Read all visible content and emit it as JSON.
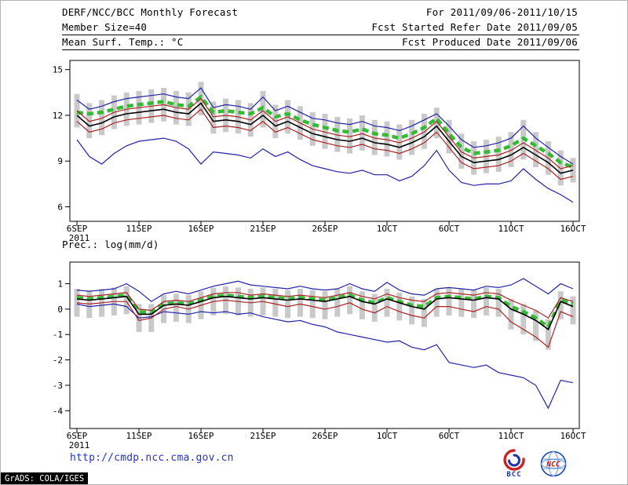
{
  "header": {
    "row1_left": "DERF/NCC/BCC Monthly Forecast",
    "row1_right": "For 2011/09/06-2011/10/15",
    "row2_left": "Member Size=40",
    "row2_right": "Fcst Started Refer Date 2011/09/05",
    "row3_left": "Mean Surf. Temp.: °C",
    "row3_right": "Fcst Produced Date 2011/09/06"
  },
  "panel2_label": "Prec.: log(mm/d)",
  "footer": {
    "url": "http://cmdp.ncc.cma.gov.cn",
    "logo_bcc": "BCC",
    "logo_ncc": "NCC",
    "credit": "GrADS: COLA/IGES"
  },
  "colors": {
    "envelope_blue": "#2222aa",
    "quantile_red": "#aa2222",
    "mean_black": "#000000",
    "reference_green": "#33bb33",
    "spread_gray": "#c9c9c9",
    "url_blue": "#2233cc"
  },
  "chart_data": [
    {
      "type": "line",
      "title": "Mean Surf. Temp.: °C",
      "xlabel": "",
      "ylabel": "",
      "x_year": "2011",
      "x_labels": [
        "6SEP",
        "11SEP",
        "16SEP",
        "21SEP",
        "26SEP",
        "1OCT",
        "6OCT",
        "11OCT",
        "16OCT"
      ],
      "x_tick_indices": [
        0,
        5,
        10,
        15,
        20,
        25,
        30,
        35,
        40
      ],
      "n_points": 41,
      "ylim": [
        5.05,
        15.6
      ],
      "yticks": [
        6,
        9,
        12,
        15
      ],
      "grid": false,
      "legend": "none",
      "band": {
        "name": "ensemble-spread",
        "color": "#c9c9c9",
        "top": [
          13.4,
          12.8,
          13.0,
          13.3,
          13.5,
          13.6,
          13.7,
          13.8,
          13.6,
          13.5,
          14.2,
          12.9,
          13.1,
          13.0,
          12.8,
          13.6,
          12.7,
          13.0,
          12.6,
          12.2,
          12.1,
          11.9,
          11.8,
          12.0,
          11.7,
          11.6,
          11.4,
          11.7,
          12.1,
          12.5,
          11.7,
          10.8,
          10.3,
          10.4,
          10.6,
          10.9,
          11.7,
          10.9,
          10.3,
          9.7,
          9.2
        ],
        "bottom": [
          11.2,
          10.5,
          10.7,
          11.1,
          11.3,
          11.4,
          11.5,
          11.6,
          11.4,
          11.3,
          12.0,
          10.8,
          10.9,
          10.8,
          10.6,
          11.2,
          10.5,
          10.8,
          10.4,
          10.0,
          9.8,
          9.6,
          9.5,
          9.7,
          9.4,
          9.3,
          9.1,
          9.4,
          9.8,
          10.5,
          9.5,
          8.5,
          8.1,
          8.2,
          8.3,
          8.6,
          9.1,
          8.6,
          8.1,
          7.4,
          7.6
        ]
      },
      "series": [
        {
          "name": "reference-dashed",
          "color": "#33bb33",
          "style": "dashed",
          "width": 4.5,
          "values": [
            12.2,
            12.1,
            12.2,
            12.4,
            12.6,
            12.7,
            12.8,
            12.9,
            12.7,
            12.6,
            13.2,
            12.2,
            12.3,
            12.2,
            12.1,
            12.5,
            11.9,
            12.1,
            11.7,
            11.4,
            11.2,
            11.0,
            10.9,
            11.1,
            10.8,
            10.7,
            10.5,
            10.8,
            11.2,
            11.8,
            10.8,
            9.9,
            9.5,
            9.6,
            9.7,
            10.0,
            10.5,
            10.0,
            9.5,
            8.9,
            8.6
          ]
        },
        {
          "name": "ensemble-max",
          "color": "#2222aa",
          "style": "solid",
          "width": 1.2,
          "values": [
            13.0,
            12.4,
            12.6,
            12.9,
            13.1,
            13.2,
            13.3,
            13.4,
            13.2,
            13.1,
            13.8,
            12.5,
            12.7,
            12.6,
            12.4,
            13.2,
            12.3,
            12.6,
            12.2,
            11.8,
            11.7,
            11.5,
            11.4,
            11.6,
            11.3,
            11.2,
            11.0,
            11.3,
            11.7,
            12.1,
            11.3,
            10.4,
            9.9,
            10.0,
            10.2,
            10.5,
            11.3,
            10.5,
            9.9,
            9.3,
            8.8
          ]
        },
        {
          "name": "ensemble-min",
          "color": "#2222aa",
          "style": "solid",
          "width": 1.2,
          "values": [
            10.4,
            9.3,
            8.8,
            9.5,
            10.0,
            10.3,
            10.4,
            10.5,
            10.3,
            9.8,
            8.8,
            9.6,
            9.5,
            9.4,
            9.2,
            9.8,
            9.3,
            9.6,
            9.1,
            8.7,
            8.5,
            8.3,
            8.2,
            8.4,
            8.1,
            8.1,
            7.7,
            8.0,
            8.7,
            9.7,
            8.4,
            7.6,
            7.4,
            7.5,
            7.5,
            7.7,
            8.5,
            7.8,
            7.2,
            6.8,
            6.3
          ]
        },
        {
          "name": "upper-quantile",
          "color": "#aa2222",
          "style": "solid",
          "width": 1.2,
          "values": [
            12.3,
            11.6,
            11.8,
            12.2,
            12.4,
            12.5,
            12.6,
            12.7,
            12.5,
            12.4,
            13.1,
            11.9,
            12.0,
            11.9,
            11.7,
            12.3,
            11.6,
            11.9,
            11.5,
            11.1,
            10.9,
            10.7,
            10.6,
            10.8,
            10.5,
            10.4,
            10.2,
            10.5,
            10.9,
            11.6,
            10.6,
            9.6,
            9.2,
            9.3,
            9.4,
            9.7,
            10.2,
            9.7,
            9.2,
            8.5,
            8.7
          ]
        },
        {
          "name": "lower-quantile",
          "color": "#aa2222",
          "style": "solid",
          "width": 1.2,
          "values": [
            11.6,
            10.9,
            11.1,
            11.5,
            11.7,
            11.8,
            11.9,
            12.0,
            11.8,
            11.7,
            12.4,
            11.2,
            11.3,
            11.2,
            11.0,
            11.6,
            10.9,
            11.2,
            10.8,
            10.4,
            10.2,
            10.0,
            9.9,
            10.1,
            9.8,
            9.7,
            9.5,
            9.8,
            10.2,
            10.9,
            9.9,
            8.9,
            8.5,
            8.6,
            8.7,
            9.0,
            9.5,
            9.0,
            8.5,
            7.8,
            8.0
          ]
        },
        {
          "name": "ensemble-mean",
          "color": "#000000",
          "style": "solid",
          "width": 1.6,
          "values": [
            12.0,
            11.3,
            11.5,
            11.9,
            12.1,
            12.2,
            12.3,
            12.4,
            12.2,
            12.1,
            12.8,
            11.6,
            11.7,
            11.6,
            11.4,
            12.0,
            11.3,
            11.6,
            11.2,
            10.8,
            10.6,
            10.4,
            10.3,
            10.5,
            10.2,
            10.1,
            9.9,
            10.2,
            10.6,
            11.3,
            10.3,
            9.3,
            8.9,
            9.0,
            9.1,
            9.4,
            9.9,
            9.4,
            8.9,
            8.2,
            8.4
          ]
        }
      ]
    },
    {
      "type": "line",
      "title": "Prec.: log(mm/d)",
      "xlabel": "",
      "ylabel": "",
      "x_year": "2011",
      "x_labels": [
        "6SEP",
        "11SEP",
        "16SEP",
        "21SEP",
        "26SEP",
        "1OCT",
        "6OCT",
        "11OCT",
        "16OCT"
      ],
      "x_tick_indices": [
        0,
        5,
        10,
        15,
        20,
        25,
        30,
        35,
        40
      ],
      "n_points": 41,
      "ylim": [
        -4.7,
        1.85
      ],
      "yticks": [
        -4,
        -3,
        -2,
        -1,
        0,
        1
      ],
      "grid": false,
      "legend": "none",
      "band": {
        "name": "ensemble-spread",
        "color": "#c9c9c9",
        "top": [
          0.8,
          0.75,
          0.8,
          0.85,
          0.9,
          0.2,
          0.2,
          0.55,
          0.6,
          0.55,
          0.7,
          0.85,
          0.9,
          0.85,
          0.8,
          0.85,
          0.8,
          0.75,
          0.8,
          0.75,
          0.7,
          0.8,
          0.9,
          0.7,
          0.6,
          0.8,
          0.65,
          0.5,
          0.4,
          0.8,
          0.85,
          0.8,
          0.75,
          0.85,
          0.8,
          0.4,
          0.2,
          -0.05,
          -0.4,
          0.7,
          0.5
        ],
        "bottom": [
          -0.3,
          -0.35,
          -0.3,
          -0.25,
          -0.2,
          -0.9,
          -0.9,
          -0.55,
          -0.5,
          -0.55,
          -0.4,
          -0.25,
          -0.2,
          -0.25,
          -0.3,
          -0.25,
          -0.3,
          -0.35,
          -0.3,
          -0.35,
          -0.4,
          -0.3,
          -0.2,
          -0.4,
          -0.5,
          -0.3,
          -0.45,
          -0.6,
          -0.7,
          -0.3,
          -0.25,
          -0.3,
          -0.35,
          -0.25,
          -0.3,
          -0.8,
          -1.0,
          -1.25,
          -1.6,
          -0.4,
          -0.6
        ]
      },
      "series": [
        {
          "name": "reference-dashed",
          "color": "#33bb33",
          "style": "dashed",
          "width": 4.5,
          "values": [
            0.45,
            0.4,
            0.45,
            0.5,
            0.55,
            -0.1,
            -0.15,
            0.2,
            0.25,
            0.2,
            0.35,
            0.5,
            0.55,
            0.5,
            0.45,
            0.5,
            0.45,
            0.4,
            0.45,
            0.4,
            0.35,
            0.45,
            0.55,
            0.35,
            0.25,
            0.45,
            0.3,
            0.15,
            0.1,
            0.45,
            0.5,
            0.45,
            0.4,
            0.5,
            0.45,
            0.1,
            -0.1,
            -0.35,
            -0.7,
            0.35,
            0.2
          ]
        },
        {
          "name": "ensemble-max",
          "color": "#2222aa",
          "style": "solid",
          "width": 1.2,
          "values": [
            0.75,
            0.7,
            0.75,
            0.8,
            1.0,
            0.7,
            0.3,
            0.6,
            0.7,
            0.6,
            0.75,
            0.9,
            1.0,
            1.1,
            0.95,
            0.9,
            0.85,
            0.8,
            0.9,
            0.8,
            0.75,
            0.8,
            1.0,
            0.8,
            0.7,
            1.05,
            0.75,
            0.6,
            0.55,
            0.8,
            0.85,
            0.8,
            0.75,
            0.9,
            0.85,
            0.95,
            1.2,
            0.9,
            0.6,
            1.0,
            0.8
          ]
        },
        {
          "name": "ensemble-min",
          "color": "#2222aa",
          "style": "solid",
          "width": 1.2,
          "values": [
            0.2,
            0.1,
            0.15,
            0.2,
            0.1,
            -0.35,
            -0.3,
            -0.1,
            -0.15,
            -0.2,
            -0.1,
            -0.15,
            -0.1,
            -0.2,
            -0.15,
            -0.3,
            -0.4,
            -0.5,
            -0.45,
            -0.6,
            -0.7,
            -0.9,
            -1.0,
            -1.1,
            -1.2,
            -1.3,
            -1.25,
            -1.5,
            -1.6,
            -1.4,
            -2.1,
            -2.2,
            -2.3,
            -2.2,
            -2.5,
            -2.6,
            -2.7,
            -3.0,
            -3.9,
            -2.8,
            -2.9
          ]
        },
        {
          "name": "upper-quantile",
          "color": "#aa2222",
          "style": "solid",
          "width": 1.2,
          "values": [
            0.55,
            0.5,
            0.55,
            0.6,
            0.65,
            0.0,
            -0.05,
            0.3,
            0.35,
            0.3,
            0.45,
            0.6,
            0.65,
            0.65,
            0.55,
            0.6,
            0.55,
            0.5,
            0.55,
            0.5,
            0.45,
            0.55,
            0.65,
            0.5,
            0.4,
            0.6,
            0.45,
            0.35,
            0.3,
            0.6,
            0.65,
            0.6,
            0.55,
            0.65,
            0.6,
            0.35,
            0.15,
            -0.05,
            -0.35,
            0.45,
            0.3
          ]
        },
        {
          "name": "lower-quantile",
          "color": "#aa2222",
          "style": "solid",
          "width": 1.2,
          "values": [
            0.25,
            0.2,
            0.25,
            0.3,
            0.3,
            -0.45,
            -0.35,
            0.0,
            0.1,
            0.0,
            0.15,
            0.3,
            0.35,
            0.3,
            0.25,
            0.3,
            0.2,
            0.1,
            0.2,
            0.1,
            0.0,
            0.1,
            0.25,
            0.0,
            -0.15,
            0.1,
            -0.1,
            -0.25,
            -0.35,
            0.1,
            0.1,
            0.0,
            -0.1,
            0.1,
            0.0,
            -0.5,
            -0.8,
            -1.1,
            -1.5,
            -0.1,
            -0.3
          ]
        },
        {
          "name": "ensemble-mean",
          "color": "#000000",
          "style": "solid",
          "width": 1.6,
          "values": [
            0.4,
            0.35,
            0.4,
            0.45,
            0.5,
            -0.2,
            -0.2,
            0.15,
            0.2,
            0.15,
            0.3,
            0.45,
            0.5,
            0.45,
            0.4,
            0.45,
            0.4,
            0.35,
            0.4,
            0.35,
            0.3,
            0.4,
            0.5,
            0.3,
            0.2,
            0.4,
            0.25,
            0.1,
            0.0,
            0.4,
            0.45,
            0.4,
            0.35,
            0.45,
            0.4,
            0.0,
            -0.2,
            -0.45,
            -0.8,
            0.3,
            0.1
          ]
        }
      ]
    }
  ]
}
